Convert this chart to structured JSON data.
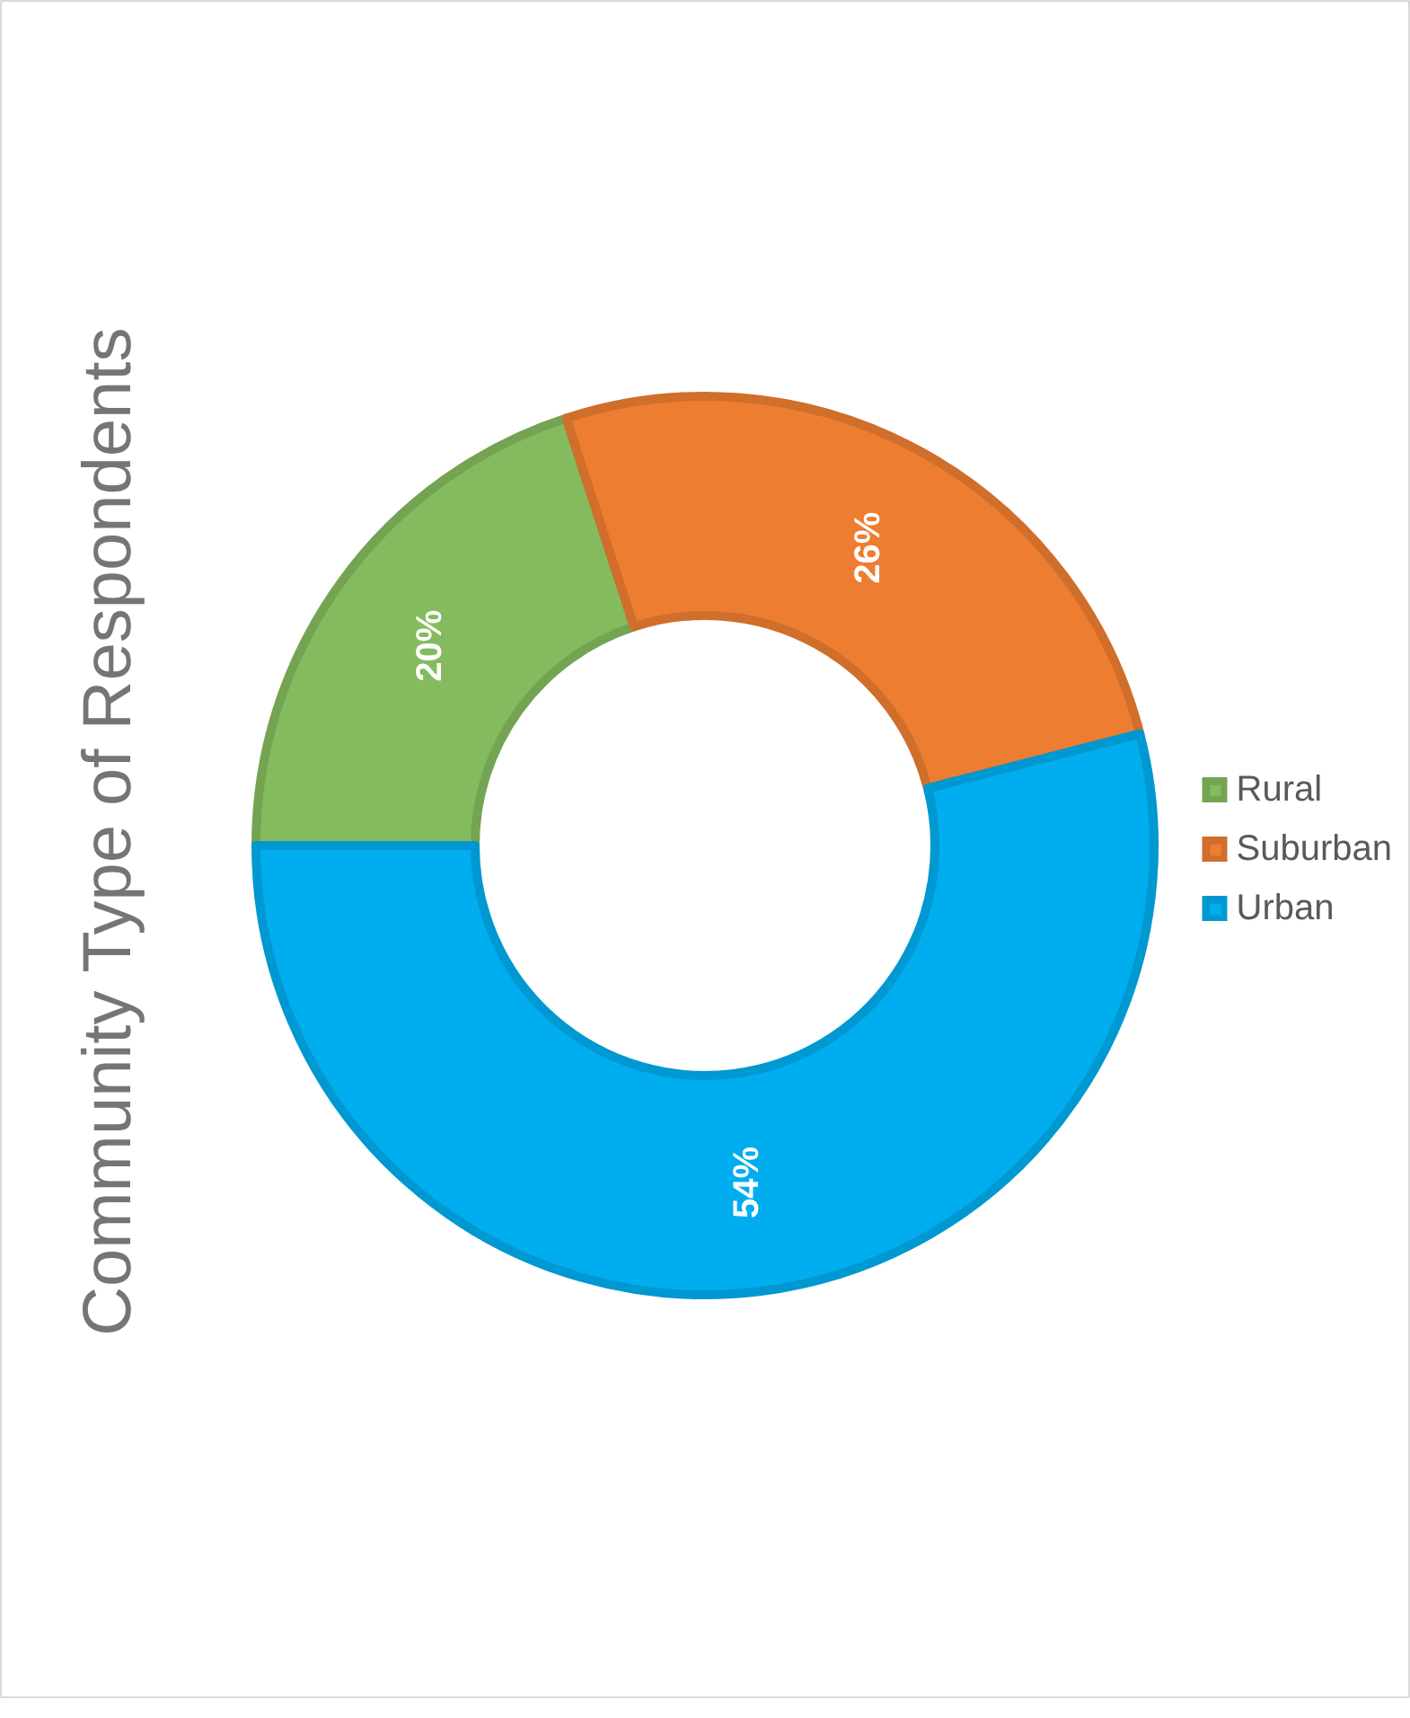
{
  "chart_data": {
    "type": "donut",
    "title": "Community Type of Respondents",
    "categories": [
      "Rural",
      "Suburban",
      "Urban"
    ],
    "values": [
      20,
      26,
      54
    ],
    "colors": [
      "#84bb5e",
      "#ed7d31",
      "#00adee"
    ],
    "value_labels": [
      "20%",
      "26%",
      "54%"
    ],
    "legend": "right"
  }
}
